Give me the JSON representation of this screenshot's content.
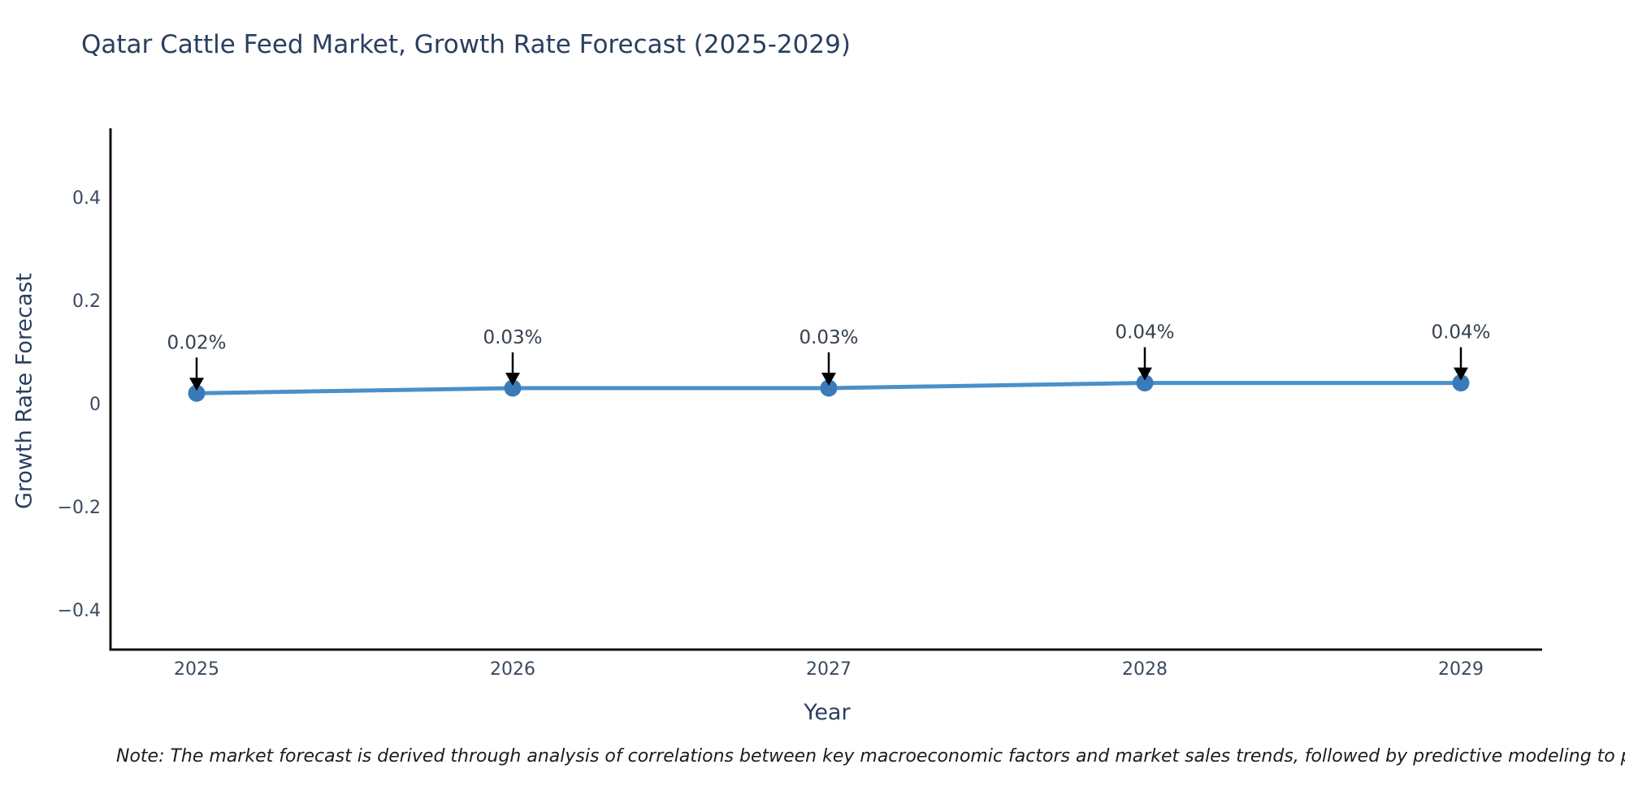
{
  "chart": {
    "title": "Qatar Cattle Feed Market, Growth Rate Forecast (2025-2029)",
    "xlabel": "Year",
    "ylabel": "Growth Rate Forecast"
  },
  "note": {
    "text": "Note: The market forecast is derived through analysis of correlations between key macroeconomic factors and market sales trends, followed by predictive modeling to project future sa"
  },
  "colors": {
    "background": "#ffffff",
    "axis_spine": "#111111",
    "title_text": "#2a3f5f",
    "tick_text": "#394a60",
    "annotation_text": "#35414f",
    "arrow": "#000000",
    "line": "#4a90c9",
    "marker": "#3a7ab8"
  },
  "chart_data": {
    "type": "line",
    "title": "Qatar Cattle Feed Market, Growth Rate Forecast (2025-2029)",
    "xlabel": "Year",
    "ylabel": "Growth Rate Forecast",
    "x": [
      2025,
      2026,
      2027,
      2028,
      2029
    ],
    "xtick_labels": [
      "2025",
      "2026",
      "2027",
      "2028",
      "2029"
    ],
    "series": [
      {
        "name": "Growth Rate Forecast",
        "values": [
          0.02,
          0.03,
          0.03,
          0.04,
          0.04
        ]
      }
    ],
    "point_labels": [
      "0.02%",
      "0.03%",
      "0.03%",
      "0.04%",
      "0.04%"
    ],
    "ytick_values": [
      0.4,
      0.2,
      0,
      -0.2,
      -0.4
    ],
    "ytick_labels": [
      "0.4",
      "0.2",
      "0",
      "−0.2",
      "−0.4"
    ],
    "ylim": [
      -0.48,
      0.53
    ],
    "grid": false,
    "legend": false,
    "marker": "circle",
    "annotations_style": "value label with black down-arrow above each point"
  }
}
